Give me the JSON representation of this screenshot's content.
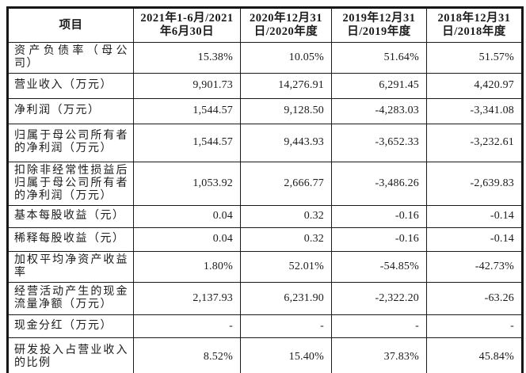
{
  "colors": {
    "text": "#1b1b1b",
    "border": "#1a1a1a",
    "background": "#ffffff"
  },
  "table": {
    "header": [
      "项目",
      "2021年1-6月/2021年6月30日",
      "2020年12月31日/2020年度",
      "2019年12月31日/2019年度",
      "2018年12月31日/2018年度"
    ],
    "rows": [
      {
        "label": "资产负债率（母公司）",
        "values": [
          "15.38%",
          "10.05%",
          "51.64%",
          "51.57%"
        ]
      },
      {
        "label": "营业收入（万元）",
        "values": [
          "9,901.73",
          "14,276.91",
          "6,291.45",
          "4,420.97"
        ]
      },
      {
        "label": "净利润（万元）",
        "values": [
          "1,544.57",
          "9,128.50",
          "-4,283.03",
          "-3,341.08"
        ]
      },
      {
        "label": "归属于母公司所有者的净利润（万元）",
        "values": [
          "1,544.57",
          "9,443.93",
          "-3,652.33",
          "-3,232.61"
        ]
      },
      {
        "label": "扣除非经常性损益后归属于母公司所有者的净利润（万元）",
        "values": [
          "1,053.92",
          "2,666.77",
          "-3,486.26",
          "-2,639.83"
        ]
      },
      {
        "label": "基本每股收益（元）",
        "values": [
          "0.04",
          "0.32",
          "-0.16",
          "-0.14"
        ]
      },
      {
        "label": "稀释每股收益（元）",
        "values": [
          "0.04",
          "0.32",
          "-0.16",
          "-0.14"
        ]
      },
      {
        "label": "加权平均净资产收益率",
        "values": [
          "1.80%",
          "52.01%",
          "-54.85%",
          "-42.73%"
        ]
      },
      {
        "label": "经营活动产生的现金流量净额（万元）",
        "values": [
          "2,137.93",
          "6,231.90",
          "-2,322.20",
          "-63.26"
        ]
      },
      {
        "label": "现金分红（万元）",
        "values": [
          "-",
          "-",
          "-",
          "-"
        ]
      },
      {
        "label": "研发投入占营业收入的比例",
        "values": [
          "8.52%",
          "15.40%",
          "37.83%",
          "45.84%"
        ]
      }
    ]
  }
}
